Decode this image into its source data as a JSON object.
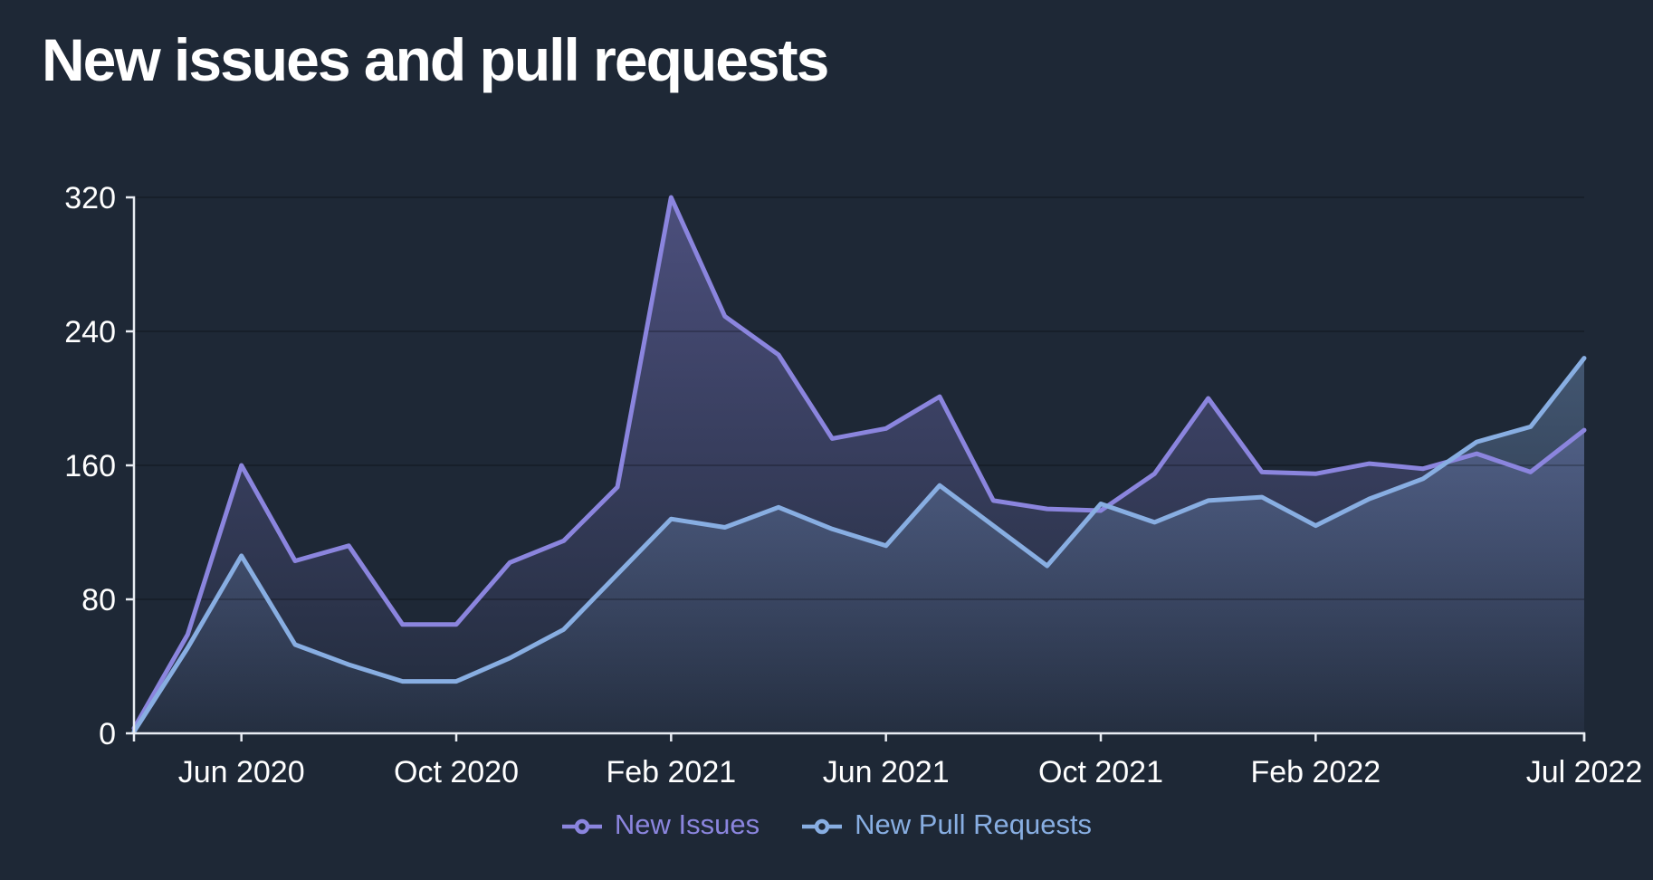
{
  "colors": {
    "background": "#1e2836",
    "axis": "#e9edf3",
    "text": "#ffffff",
    "gridline": "rgba(0,0,0,0.22)",
    "issues_accent": "#8b85de",
    "pull_requests_accent": "#88aee2"
  },
  "chart_data": {
    "type": "area",
    "title": "New issues and pull requests",
    "x": [
      "Apr 2020",
      "May 2020",
      "Jun 2020",
      "Jul 2020",
      "Aug 2020",
      "Sep 2020",
      "Oct 2020",
      "Nov 2020",
      "Dec 2020",
      "Jan 2021",
      "Feb 2021",
      "Mar 2021",
      "Apr 2021",
      "May 2021",
      "Jun 2021",
      "Jul 2021",
      "Aug 2021",
      "Sep 2021",
      "Oct 2021",
      "Nov 2021",
      "Dec 2021",
      "Jan 2022",
      "Feb 2022",
      "Mar 2022",
      "Apr 2022",
      "May 2022",
      "Jun 2022",
      "Jul 2022"
    ],
    "x_tick_labels": [
      "Jun 2020",
      "Oct 2020",
      "Feb 2021",
      "Jun 2021",
      "Oct 2021",
      "Feb 2022",
      "Jul 2022"
    ],
    "y_ticks": [
      0,
      80,
      160,
      240,
      320
    ],
    "ylim": [
      0,
      320
    ],
    "xlabel": "",
    "ylabel": "",
    "grid": "faint horizontal lines at y ticks",
    "legend_position": "bottom",
    "series": [
      {
        "name": "New Issues",
        "color": "#8b85de",
        "values": [
          3,
          59,
          160,
          103,
          112,
          65,
          65,
          102,
          115,
          147,
          320,
          249,
          226,
          176,
          182,
          201,
          139,
          134,
          133,
          155,
          200,
          156,
          155,
          161,
          158,
          167,
          156,
          181
        ]
      },
      {
        "name": "New Pull Requests",
        "color": "#88aee2",
        "values": [
          1,
          51,
          106,
          53,
          41,
          31,
          31,
          45,
          62,
          95,
          128,
          123,
          135,
          122,
          112,
          148,
          124,
          100,
          137,
          126,
          139,
          141,
          124,
          140,
          152,
          174,
          183,
          224
        ]
      }
    ]
  }
}
